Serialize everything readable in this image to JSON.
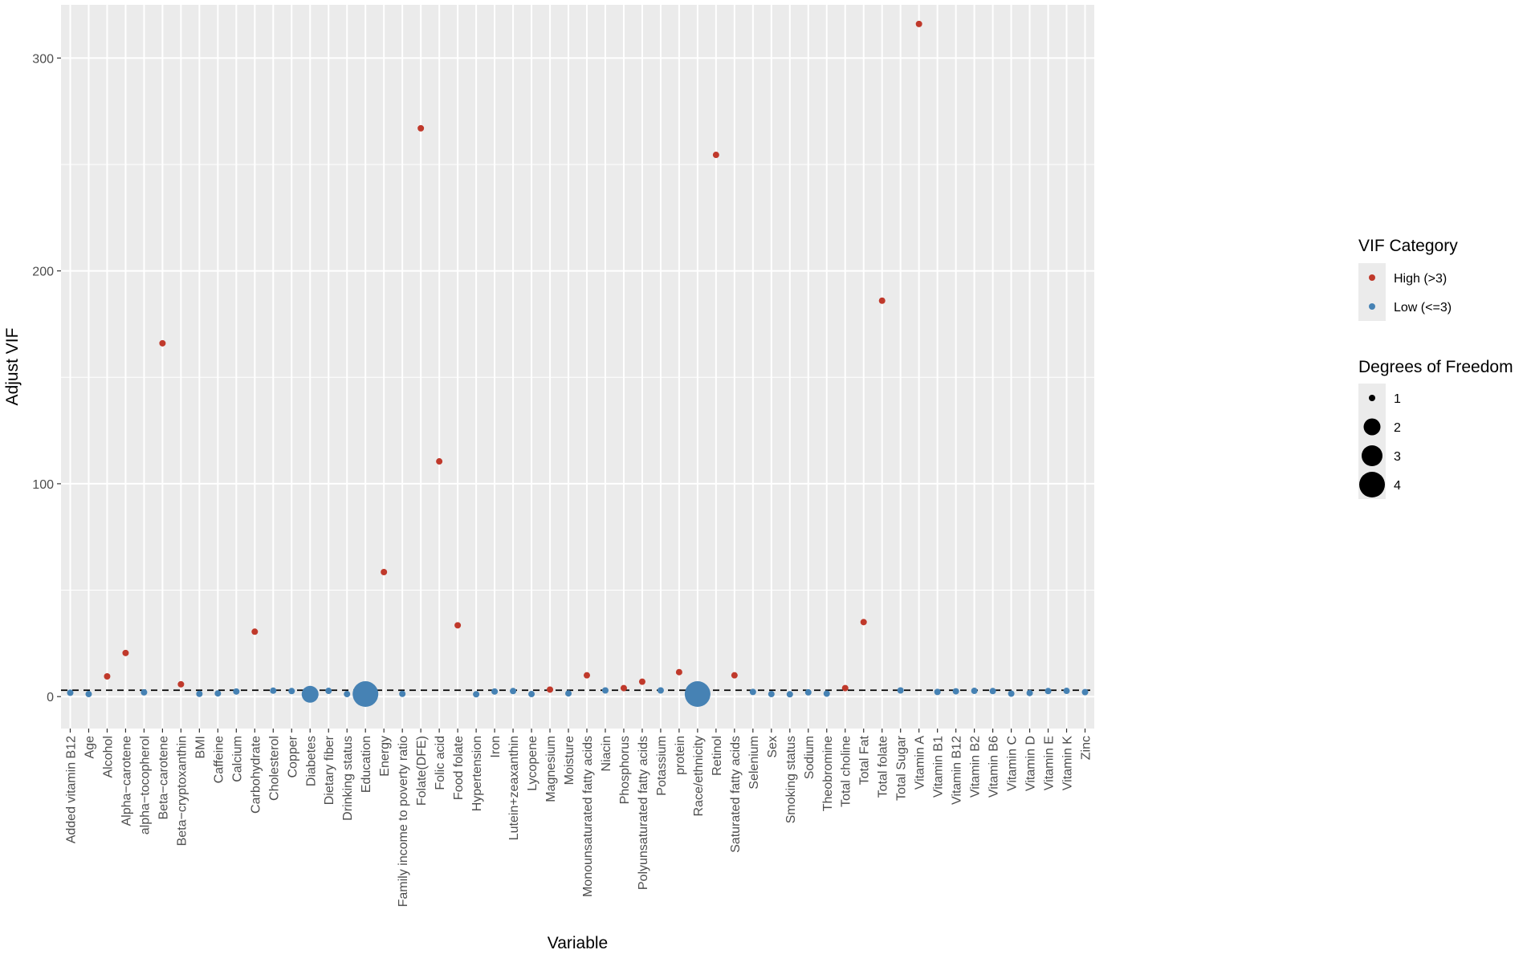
{
  "chart_data": {
    "type": "scatter",
    "xlabel": "Variable",
    "ylabel": "Adjust VIF",
    "ylim": [
      -15,
      325
    ],
    "y_ticks": [
      0,
      100,
      200,
      300
    ],
    "reference_line": 3,
    "grid": true,
    "legend_position": "right",
    "colors": {
      "High (>3)": "#C0392B",
      "Low (<=3)": "#4682B4"
    },
    "legend_color": {
      "title": "VIF Category",
      "items": [
        {
          "label": "High (>3)",
          "color": "#C0392B"
        },
        {
          "label": "Low (<=3)",
          "color": "#4682B4"
        }
      ]
    },
    "legend_size": {
      "title": "Degrees of Freedom",
      "items": [
        {
          "label": "1",
          "df": 1
        },
        {
          "label": "2",
          "df": 2
        },
        {
          "label": "3",
          "df": 3
        },
        {
          "label": "4",
          "df": 4
        }
      ]
    },
    "points": [
      {
        "variable": "Added vitamin B12",
        "vif": 1.8,
        "category": "Low (<=3)",
        "df": 1
      },
      {
        "variable": "Age",
        "vif": 1.2,
        "category": "Low (<=3)",
        "df": 1
      },
      {
        "variable": "Alcohol",
        "vif": 9.5,
        "category": "High (>3)",
        "df": 1
      },
      {
        "variable": "Alpha−carotene",
        "vif": 20.5,
        "category": "High (>3)",
        "df": 1
      },
      {
        "variable": "alpha−tocopherol",
        "vif": 2.0,
        "category": "Low (<=3)",
        "df": 1
      },
      {
        "variable": "Beta−carotene",
        "vif": 166,
        "category": "High (>3)",
        "df": 1
      },
      {
        "variable": "Beta−cryptoxanthin",
        "vif": 5.8,
        "category": "High (>3)",
        "df": 1
      },
      {
        "variable": "BMI",
        "vif": 1.3,
        "category": "Low (<=3)",
        "df": 1
      },
      {
        "variable": "Caffeine",
        "vif": 1.5,
        "category": "Low (<=3)",
        "df": 1
      },
      {
        "variable": "Calcium",
        "vif": 2.4,
        "category": "Low (<=3)",
        "df": 1
      },
      {
        "variable": "Carbohydrate",
        "vif": 30.5,
        "category": "High (>3)",
        "df": 1
      },
      {
        "variable": "Cholesterol",
        "vif": 2.8,
        "category": "Low (<=3)",
        "df": 1
      },
      {
        "variable": "Copper",
        "vif": 2.6,
        "category": "Low (<=3)",
        "df": 1
      },
      {
        "variable": "Diabetes",
        "vif": 1.1,
        "category": "Low (<=3)",
        "df": 2
      },
      {
        "variable": "Dietary fiber",
        "vif": 2.7,
        "category": "Low (<=3)",
        "df": 1
      },
      {
        "variable": "Drinking status",
        "vif": 1.2,
        "category": "Low (<=3)",
        "df": 1
      },
      {
        "variable": "Education",
        "vif": 1.2,
        "category": "Low (<=3)",
        "df": 4
      },
      {
        "variable": "Energy",
        "vif": 58.5,
        "category": "High (>3)",
        "df": 1
      },
      {
        "variable": "Family income to poverty ratio",
        "vif": 1.3,
        "category": "Low (<=3)",
        "df": 1
      },
      {
        "variable": "Folate(DFE)",
        "vif": 267,
        "category": "High (>3)",
        "df": 1
      },
      {
        "variable": "Folic acid",
        "vif": 110.5,
        "category": "High (>3)",
        "df": 1
      },
      {
        "variable": "Food folate",
        "vif": 33.5,
        "category": "High (>3)",
        "df": 1
      },
      {
        "variable": "Hypertension",
        "vif": 1.1,
        "category": "Low (<=3)",
        "df": 1
      },
      {
        "variable": "Iron",
        "vif": 2.4,
        "category": "Low (<=3)",
        "df": 1
      },
      {
        "variable": "Lutein+zeaxanthin",
        "vif": 2.6,
        "category": "Low (<=3)",
        "df": 1
      },
      {
        "variable": "Lycopene",
        "vif": 1.2,
        "category": "Low (<=3)",
        "df": 1
      },
      {
        "variable": "Magnesium",
        "vif": 3.3,
        "category": "High (>3)",
        "df": 1
      },
      {
        "variable": "Moisture",
        "vif": 1.5,
        "category": "Low (<=3)",
        "df": 1
      },
      {
        "variable": "Monounsaturated fatty acids",
        "vif": 10.0,
        "category": "High (>3)",
        "df": 1
      },
      {
        "variable": "Niacin",
        "vif": 2.9,
        "category": "Low (<=3)",
        "df": 1
      },
      {
        "variable": "Phosphorus",
        "vif": 4.0,
        "category": "High (>3)",
        "df": 1
      },
      {
        "variable": "Polyunsaturated fatty acids",
        "vif": 7.0,
        "category": "High (>3)",
        "df": 1
      },
      {
        "variable": "Potassium",
        "vif": 2.9,
        "category": "Low (<=3)",
        "df": 1
      },
      {
        "variable": "protein",
        "vif": 11.5,
        "category": "High (>3)",
        "df": 1
      },
      {
        "variable": "Race/ethnicity",
        "vif": 1.2,
        "category": "Low (<=3)",
        "df": 4
      },
      {
        "variable": "Retinol",
        "vif": 254.5,
        "category": "High (>3)",
        "df": 1
      },
      {
        "variable": "Saturated fatty acids",
        "vif": 10.0,
        "category": "High (>3)",
        "df": 1
      },
      {
        "variable": "Selenium",
        "vif": 2.2,
        "category": "Low (<=3)",
        "df": 1
      },
      {
        "variable": "Sex",
        "vif": 1.2,
        "category": "Low (<=3)",
        "df": 1
      },
      {
        "variable": "Smoking status",
        "vif": 1.1,
        "category": "Low (<=3)",
        "df": 1
      },
      {
        "variable": "Sodium",
        "vif": 2.0,
        "category": "Low (<=3)",
        "df": 1
      },
      {
        "variable": "Theobromine",
        "vif": 1.4,
        "category": "Low (<=3)",
        "df": 1
      },
      {
        "variable": "Total choline",
        "vif": 4.0,
        "category": "High (>3)",
        "df": 1
      },
      {
        "variable": "Total Fat",
        "vif": 35.0,
        "category": "High (>3)",
        "df": 1
      },
      {
        "variable": "Total folate",
        "vif": 186,
        "category": "High (>3)",
        "df": 1
      },
      {
        "variable": "Total Sugar",
        "vif": 2.9,
        "category": "Low (<=3)",
        "df": 1
      },
      {
        "variable": "Vitamin A",
        "vif": 316,
        "category": "High (>3)",
        "df": 1
      },
      {
        "variable": "Vitamin B1",
        "vif": 2.2,
        "category": "Low (<=3)",
        "df": 1
      },
      {
        "variable": "Vitamin B12",
        "vif": 2.5,
        "category": "Low (<=3)",
        "df": 1
      },
      {
        "variable": "Vitamin B2",
        "vif": 2.7,
        "category": "Low (<=3)",
        "df": 1
      },
      {
        "variable": "Vitamin B6",
        "vif": 2.6,
        "category": "Low (<=3)",
        "df": 1
      },
      {
        "variable": "Vitamin C",
        "vif": 1.4,
        "category": "Low (<=3)",
        "df": 1
      },
      {
        "variable": "Vitamin D",
        "vif": 1.7,
        "category": "Low (<=3)",
        "df": 1
      },
      {
        "variable": "Vitamin E",
        "vif": 2.6,
        "category": "Low (<=3)",
        "df": 1
      },
      {
        "variable": "Vitamin K",
        "vif": 2.7,
        "category": "Low (<=3)",
        "df": 1
      },
      {
        "variable": "Zinc",
        "vif": 2.1,
        "category": "Low (<=3)",
        "df": 1
      }
    ]
  }
}
